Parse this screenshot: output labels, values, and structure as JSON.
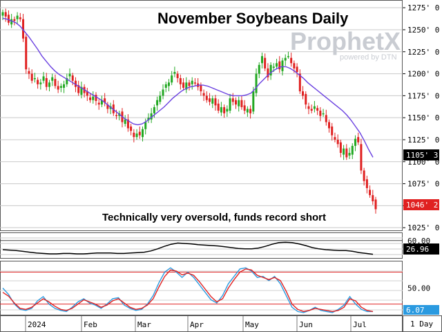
{
  "chart_data": [
    {
      "type": "candlestick",
      "title": "November Soybeans Daily",
      "annotation": "Technically very oversold, funds record short",
      "watermark": {
        "brand": "ProphetX",
        "tagline": "powered by DTN"
      },
      "price_axis": {
        "ticks": [
          "1275' 0",
          "1250' 0",
          "1225' 0",
          "1200' 0",
          "1175' 0",
          "1150' 0",
          "1125' 0",
          "1100' 0",
          "1075' 0",
          "1050' 0",
          "1025' 0"
        ],
        "ylim": [
          1022,
          1283
        ]
      },
      "x_axis": {
        "labels": [
          "2024",
          "Feb",
          "Mar",
          "Apr",
          "May",
          "Jun",
          "Jul"
        ],
        "period_label": "1 Day"
      },
      "last_price_label": "1046' 2",
      "moving_average_label": "1105' 3",
      "colors": {
        "up": "#22a822",
        "down": "#e02020",
        "moving_average": "#6a40e0"
      },
      "closes": [
        1270,
        1265,
        1258,
        1262,
        1260,
        1266,
        1262,
        1240,
        1205,
        1200,
        1192,
        1195,
        1188,
        1190,
        1197,
        1185,
        1190,
        1196,
        1186,
        1182,
        1186,
        1188,
        1195,
        1200,
        1192,
        1185,
        1178,
        1185,
        1178,
        1175,
        1170,
        1174,
        1169,
        1165,
        1170,
        1167,
        1160,
        1163,
        1155,
        1152,
        1155,
        1145,
        1148,
        1138,
        1135,
        1128,
        1132,
        1130,
        1137,
        1145,
        1150,
        1155,
        1162,
        1170,
        1175,
        1182,
        1188,
        1190,
        1198,
        1202,
        1195,
        1188,
        1184,
        1190,
        1186,
        1192,
        1189,
        1185,
        1180,
        1175,
        1170,
        1168,
        1172,
        1164,
        1158,
        1162,
        1155,
        1160,
        1172,
        1168,
        1165,
        1170,
        1162,
        1158,
        1160,
        1155,
        1180,
        1200,
        1210,
        1220,
        1206,
        1196,
        1210,
        1208,
        1212,
        1205,
        1215,
        1218,
        1220,
        1212,
        1206,
        1202,
        1180,
        1175,
        1165,
        1160,
        1158,
        1163,
        1158,
        1152,
        1155,
        1145,
        1138,
        1130,
        1125,
        1120,
        1110,
        1115,
        1105,
        1110,
        1118,
        1126,
        1122,
        1090,
        1078,
        1070,
        1062,
        1055,
        1046
      ],
      "moving_average": [
        1263,
        1262,
        1260,
        1258,
        1254,
        1248,
        1242,
        1235,
        1228,
        1220,
        1214,
        1208,
        1203,
        1199,
        1196,
        1193,
        1190,
        1187,
        1184,
        1181,
        1178,
        1175,
        1172,
        1169,
        1165,
        1161,
        1157,
        1153,
        1149,
        1146,
        1143,
        1142,
        1143,
        1146,
        1150,
        1154,
        1158,
        1162,
        1167,
        1172,
        1176,
        1180,
        1183,
        1185,
        1186,
        1187,
        1187,
        1186,
        1184,
        1182,
        1180,
        1178,
        1176,
        1175,
        1175,
        1175,
        1176,
        1178,
        1183,
        1189,
        1194,
        1199,
        1203,
        1206,
        1208,
        1208,
        1206,
        1203,
        1199,
        1195,
        1190,
        1186,
        1182,
        1178,
        1174,
        1170,
        1166,
        1162,
        1158,
        1153,
        1147,
        1140,
        1133,
        1124,
        1114,
        1105
      ]
    },
    {
      "type": "line",
      "name": "ADX",
      "ticks": [
        "60.00"
      ],
      "last_value_label": "26.96",
      "ylim": [
        18,
        78
      ],
      "values": [
        38,
        37,
        36,
        34,
        32,
        30,
        29,
        28,
        28,
        29,
        29,
        28,
        28,
        29,
        30,
        30,
        30,
        29,
        29,
        30,
        31,
        32,
        35,
        40,
        46,
        51,
        54,
        53,
        52,
        50,
        49,
        48,
        47,
        45,
        43,
        41,
        40,
        40,
        42,
        46,
        51,
        55,
        56,
        55,
        52,
        48,
        43,
        40,
        38,
        37,
        36,
        36,
        34,
        31,
        29,
        27
      ],
      "colors": {
        "line": "#000000"
      }
    },
    {
      "type": "line",
      "name": "Stochastics",
      "ticks": [
        "50.00"
      ],
      "last_value_label": "6.07",
      "ylim": [
        0,
        100
      ],
      "reference_lines": [
        80,
        20
      ],
      "series": [
        {
          "values": [
            42,
            35,
            22,
            12,
            10,
            14,
            22,
            30,
            24,
            16,
            10,
            8,
            12,
            20,
            28,
            24,
            20,
            14,
            18,
            26,
            30,
            22,
            14,
            10,
            12,
            18,
            30,
            52,
            72,
            84,
            82,
            75,
            78,
            74,
            62,
            48,
            34,
            24,
            30,
            50,
            66,
            80,
            86,
            84,
            74,
            70,
            66,
            70,
            64,
            44,
            20,
            10,
            6,
            8,
            12,
            10,
            8,
            6,
            8,
            14,
            30,
            26,
            14,
            8,
            6
          ],
          "color": "#e02020"
        },
        {
          "values": [
            50,
            38,
            20,
            10,
            8,
            12,
            26,
            34,
            20,
            12,
            8,
            6,
            14,
            24,
            30,
            22,
            18,
            12,
            20,
            30,
            32,
            18,
            12,
            8,
            10,
            20,
            36,
            60,
            80,
            88,
            80,
            70,
            80,
            70,
            56,
            42,
            28,
            22,
            36,
            58,
            72,
            86,
            88,
            82,
            70,
            72,
            64,
            72,
            58,
            36,
            14,
            6,
            4,
            8,
            14,
            8,
            6,
            4,
            10,
            18,
            34,
            20,
            10,
            6,
            6
          ],
          "color": "#2a9ae0"
        }
      ]
    }
  ]
}
